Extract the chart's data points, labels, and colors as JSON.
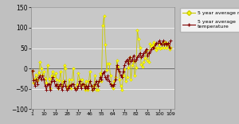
{
  "x_ticks": [
    1,
    10,
    19,
    28,
    37,
    46,
    55,
    64,
    73,
    82,
    91,
    100,
    109
  ],
  "x_tick_labels": [
    "1",
    "10",
    "19",
    "28",
    "37",
    "46",
    "55",
    "64",
    "73",
    "82",
    "91",
    "100",
    "109"
  ],
  "ylim": [
    -100,
    150
  ],
  "y_ticks": [
    -100,
    -50,
    0,
    50,
    100,
    150
  ],
  "background_color": "#c0c0c0",
  "plot_bg_color": "#c8c8c8",
  "rain_color": "#ffff00",
  "rain_edge_color": "#c8c800",
  "temp_color": "#800000",
  "legend_rain": "5 year average rain",
  "legend_temp": "5 year average\ntemperature",
  "rain_data": [
    -5,
    -35,
    -25,
    -15,
    -30,
    -10,
    15,
    0,
    -15,
    -8,
    -25,
    -35,
    8,
    -25,
    -48,
    -18,
    -8,
    -20,
    -12,
    -28,
    -48,
    -30,
    -8,
    -42,
    -32,
    8,
    0,
    -48,
    -42,
    -28,
    -48,
    -28,
    0,
    -48,
    -48,
    -38,
    -12,
    -28,
    -42,
    -28,
    -38,
    -52,
    -32,
    -52,
    -32,
    -8,
    -42,
    -52,
    -42,
    -18,
    -52,
    -52,
    -32,
    -12,
    -32,
    105,
    130,
    58,
    -3,
    12,
    12,
    -18,
    -38,
    -48,
    -32,
    -22,
    20,
    5,
    -28,
    -42,
    -52,
    -18,
    -2,
    -32,
    -22,
    2,
    28,
    -28,
    8,
    18,
    -18,
    2,
    95,
    72,
    52,
    10,
    5,
    15,
    25,
    45,
    20,
    15,
    60,
    55,
    58,
    65,
    52,
    45,
    52,
    58,
    50,
    52,
    65,
    52,
    65,
    52,
    58,
    48,
    52
  ],
  "temp_data": [
    -5,
    -30,
    -42,
    -28,
    -38,
    -22,
    -18,
    -28,
    -18,
    -28,
    -42,
    -52,
    -38,
    -38,
    -52,
    -32,
    -22,
    -32,
    -42,
    -38,
    -48,
    -42,
    -38,
    -52,
    -42,
    -32,
    -42,
    -52,
    -48,
    -42,
    -42,
    -38,
    -38,
    -48,
    -52,
    -48,
    -42,
    -32,
    -48,
    -38,
    -38,
    -48,
    -42,
    -48,
    -42,
    -32,
    -42,
    -52,
    -48,
    -38,
    -32,
    -42,
    -32,
    -22,
    -28,
    -12,
    -8,
    -22,
    -28,
    -18,
    -32,
    -38,
    -42,
    -42,
    -38,
    -28,
    8,
    -2,
    -8,
    -18,
    -22,
    -8,
    8,
    18,
    22,
    12,
    28,
    18,
    22,
    32,
    18,
    22,
    28,
    32,
    38,
    28,
    32,
    38,
    42,
    48,
    32,
    38,
    42,
    48,
    52,
    52,
    58,
    62,
    62,
    68,
    62,
    58,
    68,
    58,
    62,
    58,
    62,
    52,
    68
  ]
}
